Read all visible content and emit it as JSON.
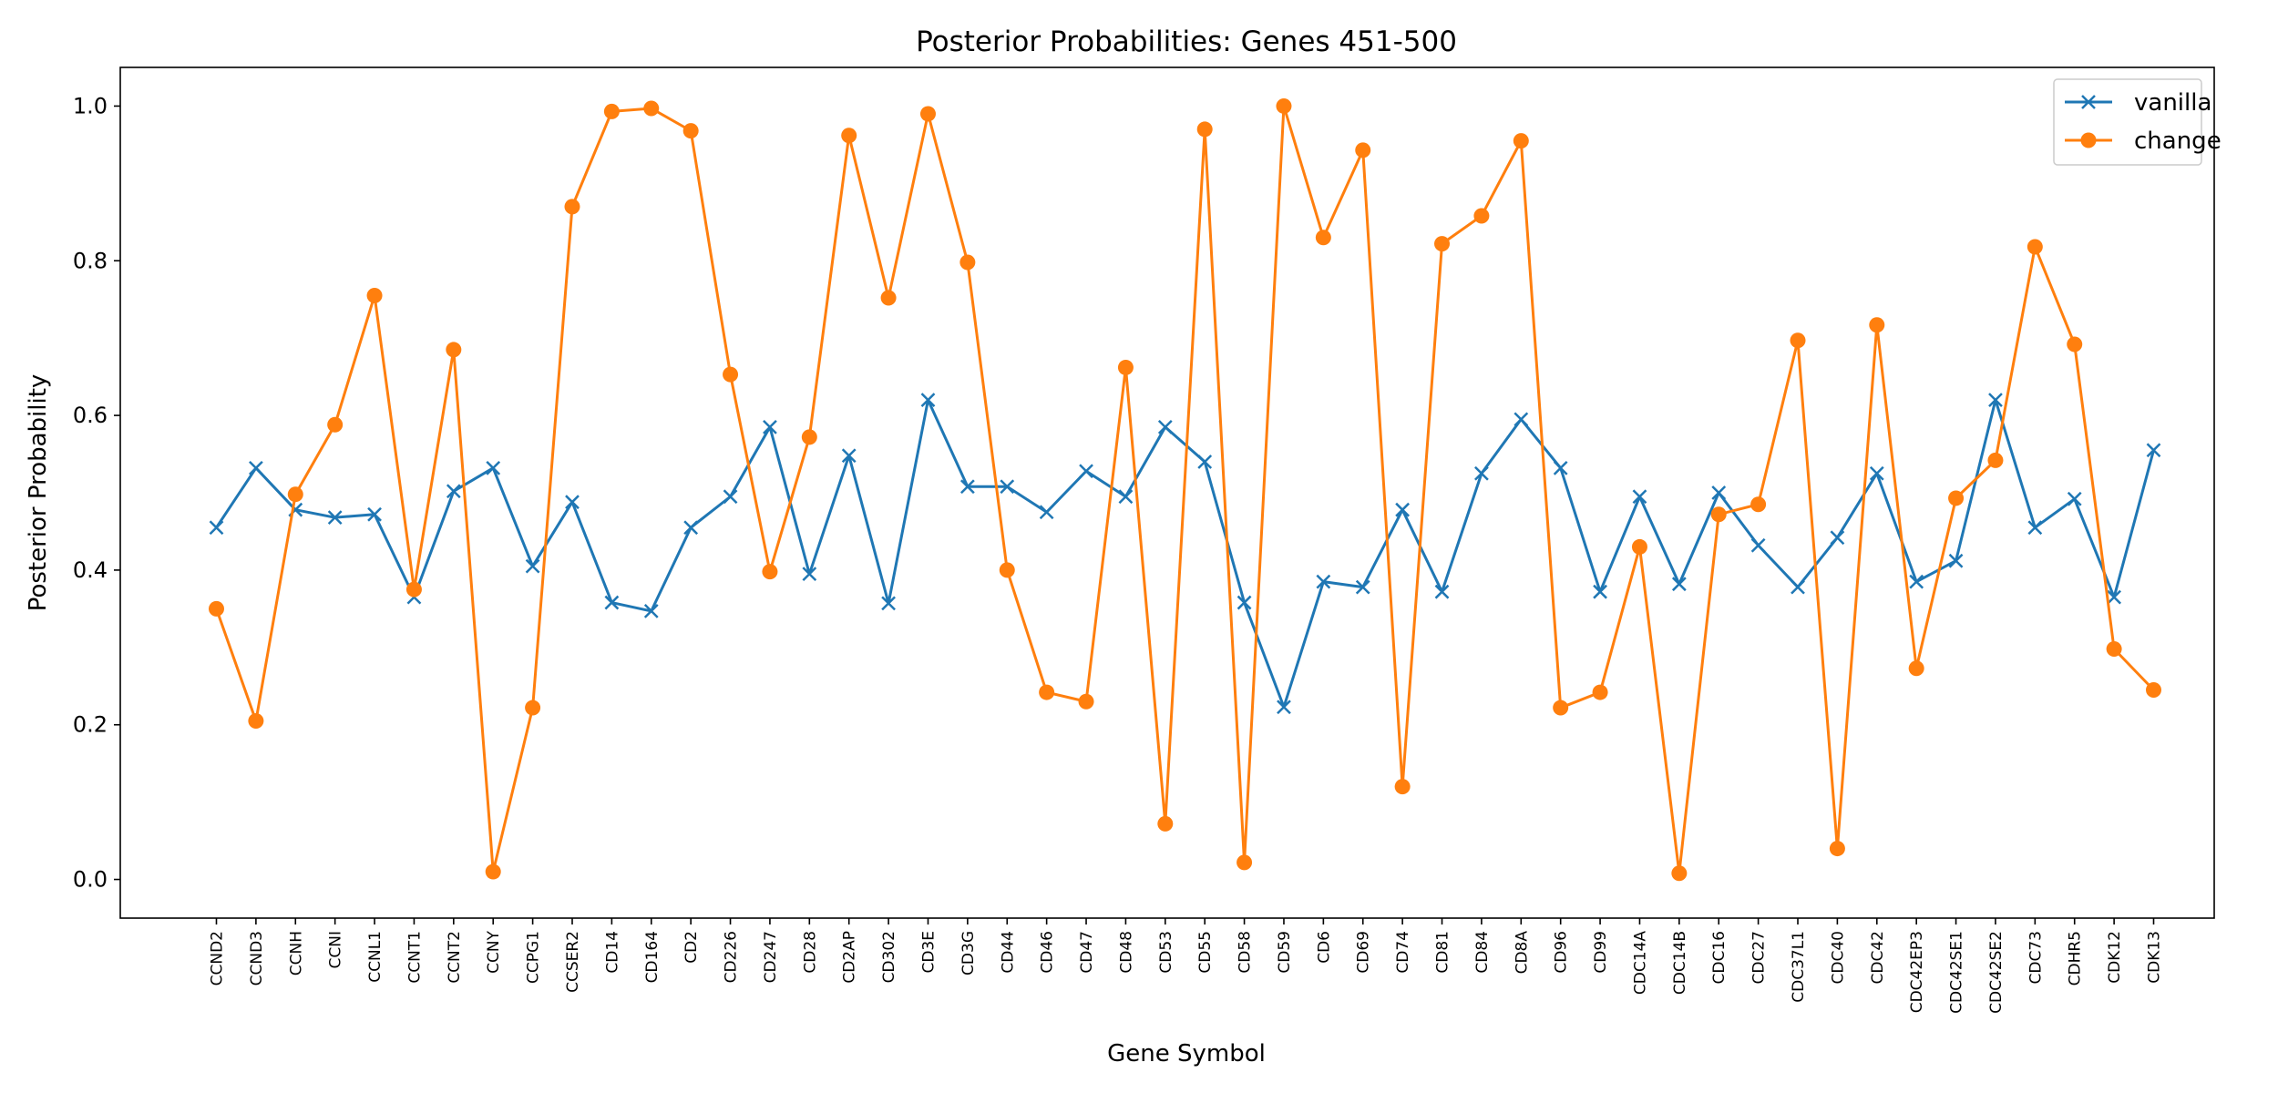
{
  "chart_data": {
    "type": "line",
    "title": "Posterior Probabilities: Genes 451-500",
    "xlabel": "Gene Symbol",
    "ylabel": "Posterior Probability",
    "ylim": [
      -0.05,
      1.05
    ],
    "yticks": [
      "0.0",
      "0.2",
      "0.4",
      "0.6",
      "0.8",
      "1.0"
    ],
    "grid": false,
    "legend_position": "top-right",
    "categories": [
      "CCND2",
      "CCND3",
      "CCNH",
      "CCNI",
      "CCNL1",
      "CCNT1",
      "CCNT2",
      "CCNY",
      "CCPG1",
      "CCSER2",
      "CD14",
      "CD164",
      "CD2",
      "CD226",
      "CD247",
      "CD28",
      "CD2AP",
      "CD302",
      "CD3E",
      "CD3G",
      "CD44",
      "CD46",
      "CD47",
      "CD48",
      "CD53",
      "CD55",
      "CD58",
      "CD59",
      "CD6",
      "CD69",
      "CD74",
      "CD81",
      "CD84",
      "CD8A",
      "CD96",
      "CD99",
      "CDC14A",
      "CDC14B",
      "CDC16",
      "CDC27",
      "CDC37L1",
      "CDC40",
      "CDC42",
      "CDC42EP3",
      "CDC42SE1",
      "CDC42SE2",
      "CDC73",
      "CDHR5",
      "CDK12",
      "CDK13"
    ],
    "series": [
      {
        "name": "vanilla",
        "color": "#1f77b4",
        "marker": "x",
        "values": [
          0.455,
          0.532,
          0.478,
          0.468,
          0.472,
          0.365,
          0.502,
          0.532,
          0.405,
          0.488,
          0.358,
          0.347,
          0.455,
          0.495,
          0.585,
          0.395,
          0.548,
          0.357,
          0.62,
          0.508,
          0.508,
          0.475,
          0.528,
          0.495,
          0.585,
          0.54,
          0.358,
          0.223,
          0.385,
          0.378,
          0.478,
          0.372,
          0.525,
          0.595,
          0.532,
          0.372,
          0.495,
          0.382,
          0.5,
          0.432,
          0.378,
          0.442,
          0.525,
          0.385,
          0.412,
          0.62,
          0.455,
          0.492,
          0.365,
          0.555
        ]
      },
      {
        "name": "change",
        "color": "#ff7f0e",
        "marker": "o",
        "values": [
          0.35,
          0.205,
          0.498,
          0.588,
          0.755,
          0.375,
          0.685,
          0.01,
          0.222,
          0.87,
          0.993,
          0.997,
          0.968,
          0.653,
          0.398,
          0.572,
          0.962,
          0.752,
          0.99,
          0.798,
          0.4,
          0.242,
          0.23,
          0.662,
          0.072,
          0.97,
          0.022,
          1.0,
          0.83,
          0.943,
          0.12,
          0.822,
          0.858,
          0.955,
          0.222,
          0.242,
          0.43,
          0.008,
          0.472,
          0.485,
          0.697,
          0.04,
          0.717,
          0.273,
          0.493,
          0.542,
          0.818,
          0.692,
          0.298,
          0.245
        ]
      }
    ]
  }
}
